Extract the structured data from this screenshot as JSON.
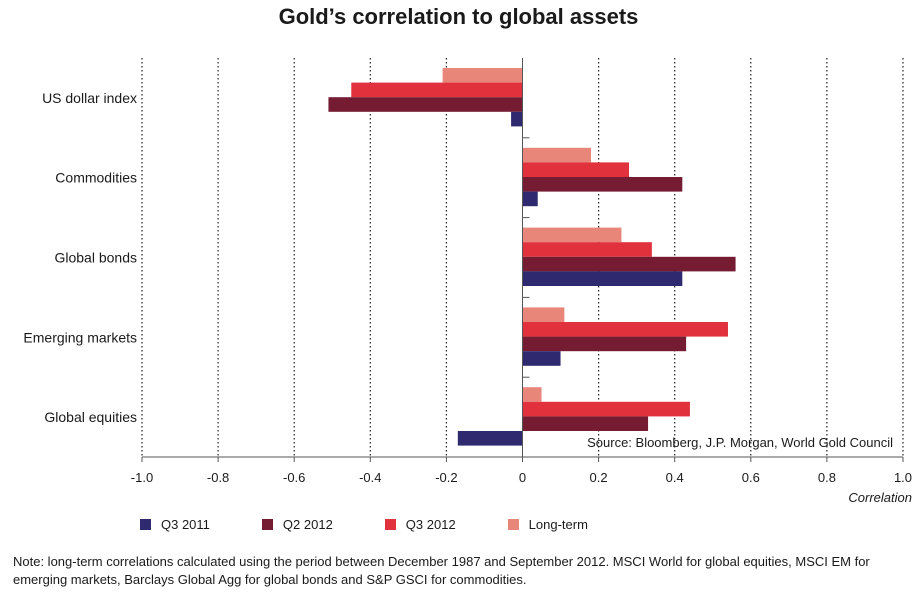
{
  "chart_data": {
    "type": "bar",
    "orientation": "horizontal",
    "title": "Gold’s correlation to global assets",
    "xlabel": "Correlation",
    "xlim": [
      -1.0,
      1.0
    ],
    "xticks": [
      "-1.0",
      "-0.8",
      "-0.6",
      "-0.4",
      "-0.2",
      "0",
      "0.2",
      "0.4",
      "0.6",
      "0.8",
      "1.0"
    ],
    "categories": [
      "US dollar index",
      "Commodities",
      "Global bonds",
      "Emerging markets",
      "Global equities"
    ],
    "series": [
      {
        "name": "Long-term",
        "color": "#e9867a",
        "values": [
          -0.21,
          0.18,
          0.26,
          0.11,
          0.05
        ]
      },
      {
        "name": "Q3 2012",
        "color": "#e0313d",
        "values": [
          -0.45,
          0.28,
          0.34,
          0.54,
          0.44
        ]
      },
      {
        "name": "Q2 2012",
        "color": "#751c33",
        "values": [
          -0.51,
          0.42,
          0.56,
          0.43,
          0.33
        ]
      },
      {
        "name": "Q3 2011",
        "color": "#2f2a6f",
        "values": [
          -0.03,
          0.04,
          0.42,
          0.1,
          -0.17
        ]
      }
    ],
    "legend_order": [
      "Q3 2011",
      "Q2 2012",
      "Q3 2012",
      "Long-term"
    ],
    "grid": "vertical-dotted",
    "legend_position": "bottom",
    "source": "Source: Bloomberg, J.P. Morgan, World Gold Council"
  },
  "note": "Note: long-term correlations calculated using the period between December 1987 and September 2012. MSCI World for global equities, MSCI EM for emerging markets, Barclays Global Agg for global bonds and S&P GSCI for commodities."
}
